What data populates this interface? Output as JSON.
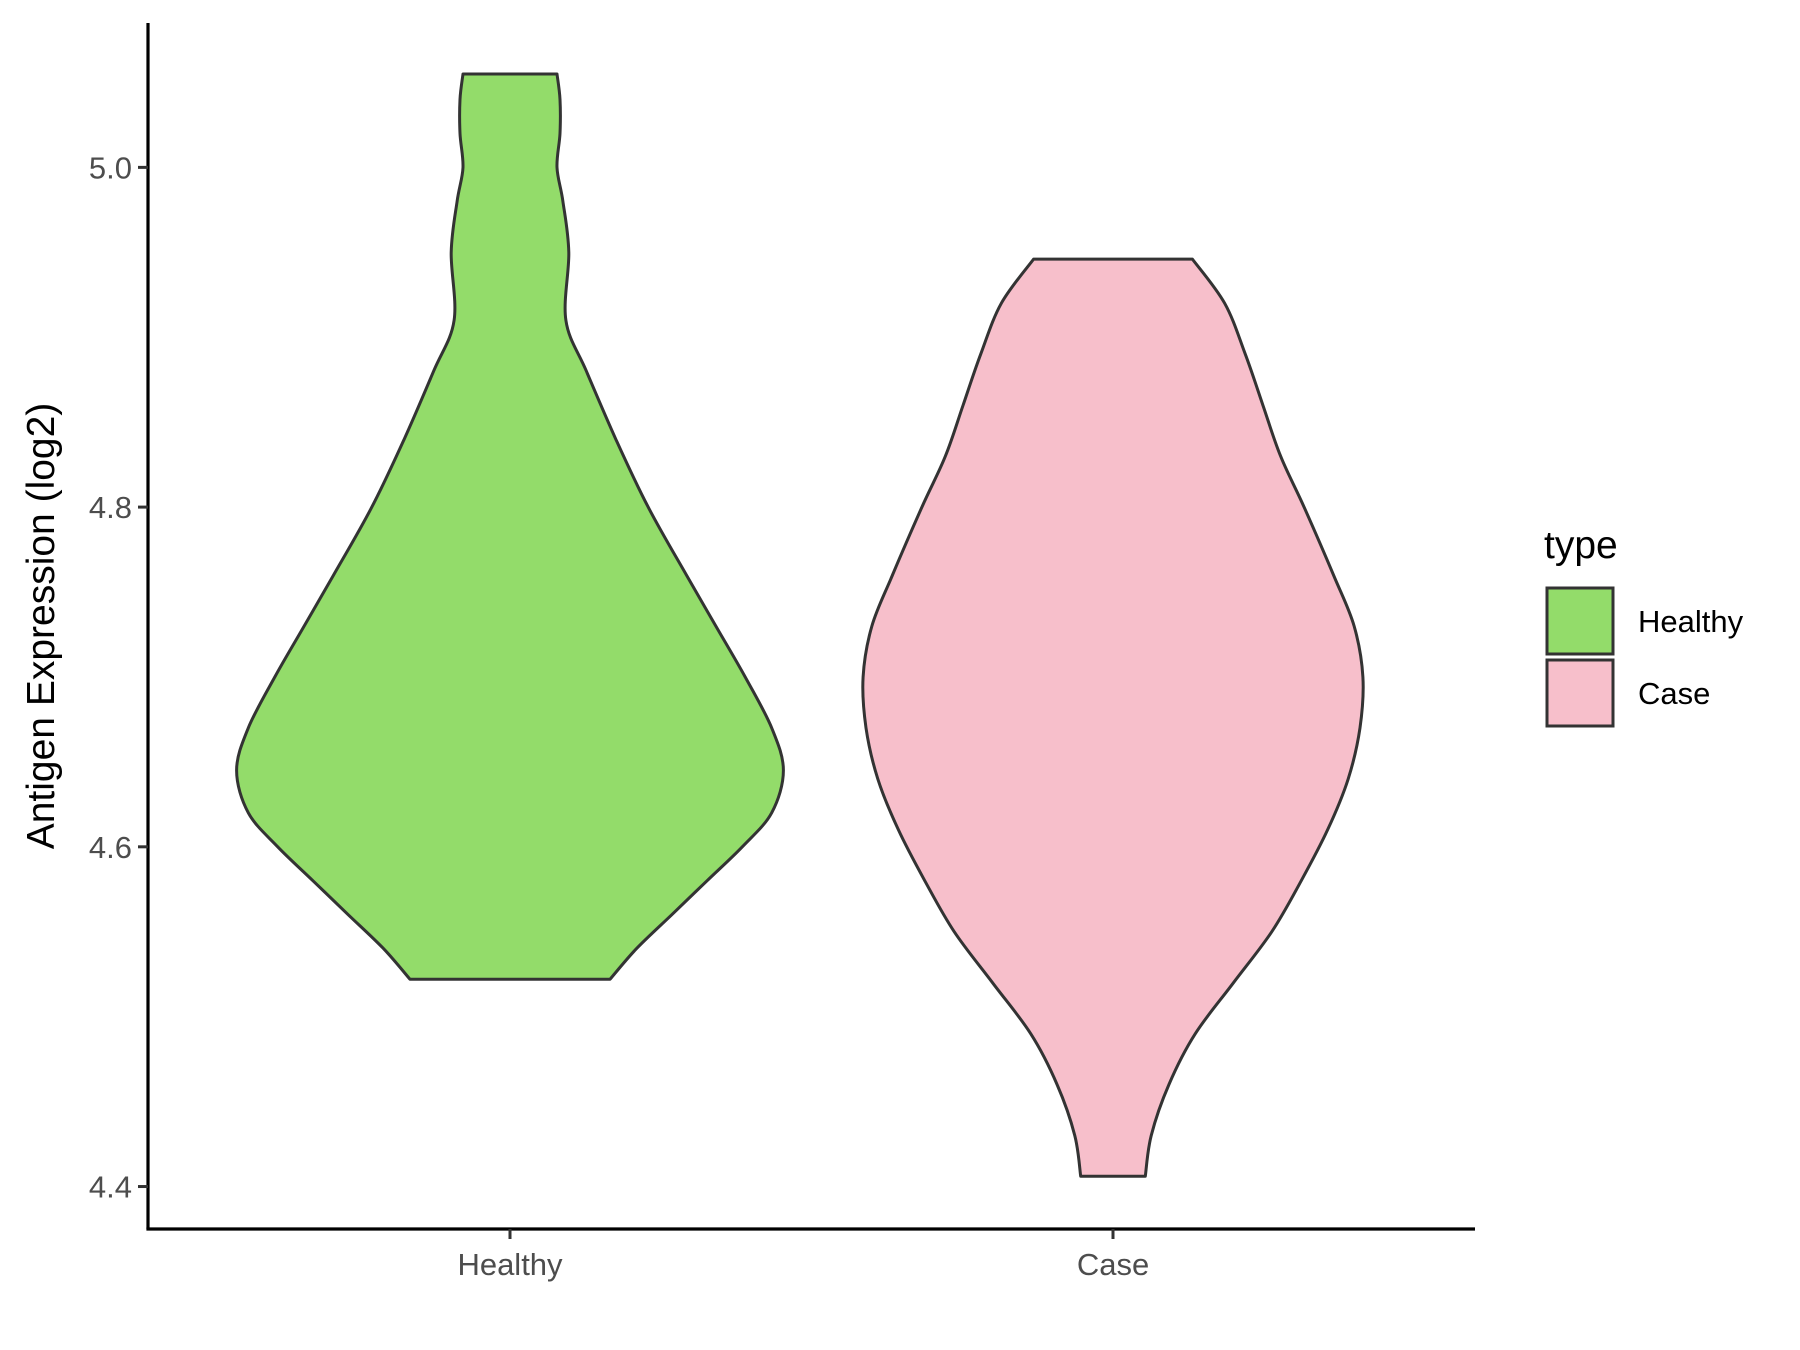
{
  "chart_data": {
    "type": "violin",
    "title": "",
    "xlabel": "",
    "ylabel": "Antigen Expression (log2)",
    "ylim": [
      4.375,
      5.085
    ],
    "yticks": [
      {
        "value": 4.4,
        "label": "4.4"
      },
      {
        "value": 4.6,
        "label": "4.6"
      },
      {
        "value": 4.8,
        "label": "4.8"
      },
      {
        "value": 5.0,
        "label": "5.0"
      }
    ],
    "categories": [
      "Healthy",
      "Case"
    ],
    "grid": false,
    "legend": {
      "title": "type",
      "position": "right",
      "entries": [
        {
          "label": "Healthy",
          "color": "#93DC6A"
        },
        {
          "label": "Case",
          "color": "#F7BFCB"
        }
      ]
    },
    "series": [
      {
        "name": "Healthy",
        "color": "#93DC6A",
        "min": 4.522,
        "max": 5.055,
        "density_profile": [
          [
            4.522,
            0.34
          ],
          [
            4.54,
            0.43
          ],
          [
            4.56,
            0.55
          ],
          [
            4.58,
            0.67
          ],
          [
            4.6,
            0.79
          ],
          [
            4.62,
            0.89
          ],
          [
            4.645,
            0.93
          ],
          [
            4.67,
            0.89
          ],
          [
            4.7,
            0.8
          ],
          [
            4.73,
            0.7
          ],
          [
            4.76,
            0.6
          ],
          [
            4.8,
            0.47
          ],
          [
            4.84,
            0.36
          ],
          [
            4.88,
            0.26
          ],
          [
            4.91,
            0.19
          ],
          [
            4.95,
            0.2
          ],
          [
            4.98,
            0.18
          ],
          [
            5.0,
            0.16
          ],
          [
            5.02,
            0.17
          ],
          [
            5.04,
            0.17
          ],
          [
            5.055,
            0.16
          ]
        ]
      },
      {
        "name": "Case",
        "color": "#F7BFCB",
        "min": 4.406,
        "max": 4.946,
        "density_profile": [
          [
            4.406,
            0.11
          ],
          [
            4.43,
            0.13
          ],
          [
            4.46,
            0.19
          ],
          [
            4.49,
            0.28
          ],
          [
            4.52,
            0.41
          ],
          [
            4.55,
            0.54
          ],
          [
            4.58,
            0.64
          ],
          [
            4.61,
            0.73
          ],
          [
            4.64,
            0.8
          ],
          [
            4.67,
            0.84
          ],
          [
            4.7,
            0.85
          ],
          [
            4.73,
            0.82
          ],
          [
            4.76,
            0.75
          ],
          [
            4.8,
            0.65
          ],
          [
            4.83,
            0.57
          ],
          [
            4.86,
            0.51
          ],
          [
            4.89,
            0.45
          ],
          [
            4.92,
            0.38
          ],
          [
            4.946,
            0.27
          ]
        ]
      }
    ]
  }
}
